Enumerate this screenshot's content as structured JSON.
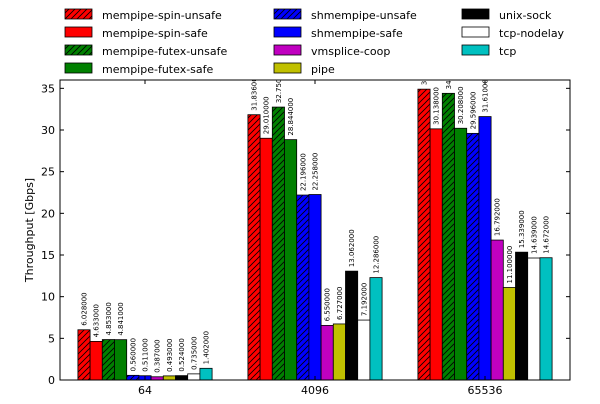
{
  "chart_data": {
    "type": "bar",
    "xlabel": "",
    "ylabel": "Throughput [Gbps]",
    "ylim": [
      0,
      36
    ],
    "yticks": [
      0,
      5,
      10,
      15,
      20,
      25,
      30,
      35
    ],
    "grid": false,
    "legend_placement": "top, outside, 3 columns",
    "categories": [
      "64",
      "4096",
      "65536"
    ],
    "series": [
      {
        "name": "mempipe-spin-unsafe",
        "color": "#ff0000",
        "hatch": true,
        "values": [
          6.028,
          31.836,
          34.9
        ]
      },
      {
        "name": "mempipe-spin-safe",
        "color": "#ff0000",
        "hatch": false,
        "values": [
          4.633,
          29.01,
          30.138
        ]
      },
      {
        "name": "mempipe-futex-unsafe",
        "color": "#008000",
        "hatch": true,
        "values": [
          4.853,
          32.75,
          34.4
        ]
      },
      {
        "name": "mempipe-futex-safe",
        "color": "#008000",
        "hatch": false,
        "values": [
          4.841,
          28.844,
          30.208
        ]
      },
      {
        "name": "shmempipe-unsafe",
        "color": "#0000ff",
        "hatch": true,
        "values": [
          0.56,
          22.196,
          29.596
        ]
      },
      {
        "name": "shmempipe-safe",
        "color": "#0000ff",
        "hatch": false,
        "values": [
          0.511,
          22.258,
          31.61
        ]
      },
      {
        "name": "vmsplice-coop",
        "color": "#c000c0",
        "hatch": false,
        "values": [
          0.387,
          6.55,
          16.792
        ]
      },
      {
        "name": "pipe",
        "color": "#c0c000",
        "hatch": false,
        "values": [
          0.493,
          6.727,
          11.1
        ]
      },
      {
        "name": "unix-sock",
        "color": "#000000",
        "hatch": false,
        "values": [
          0.524,
          13.062,
          15.339
        ]
      },
      {
        "name": "tcp-nodelay",
        "color": "#ffffff",
        "hatch": false,
        "values": [
          0.735,
          7.192,
          14.639
        ]
      },
      {
        "name": "tcp",
        "color": "#00c0c0",
        "hatch": false,
        "values": [
          1.402,
          12.286,
          14.672
        ]
      }
    ]
  }
}
